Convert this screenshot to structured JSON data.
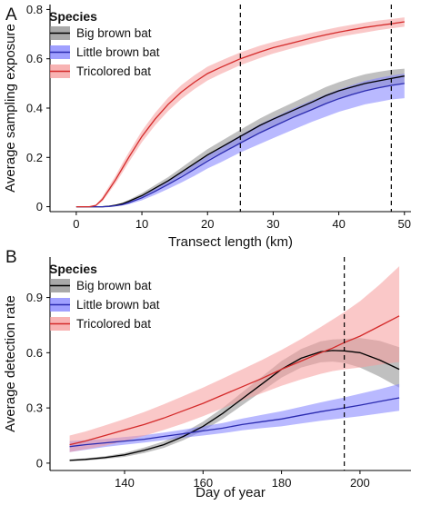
{
  "chart_data": [
    {
      "panel_label": "A",
      "type": "line",
      "xlabel": "Transect length (km)",
      "ylabel": "Average sampling exposure",
      "xlim": [
        -4,
        51
      ],
      "ylim": [
        -0.02,
        0.82
      ],
      "xticks": [
        0,
        10,
        20,
        30,
        40,
        50
      ],
      "xtick_labels": [
        "0",
        "10",
        "20",
        "30",
        "40",
        "50"
      ],
      "yticks": [
        0,
        0.2,
        0.4,
        0.6,
        0.8
      ],
      "ytick_labels": [
        "0",
        "0.2",
        "0.4",
        "0.6",
        "0.8"
      ],
      "vlines": [
        25,
        48
      ],
      "legend": {
        "title": "Species",
        "placement": "top-left"
      },
      "x": [
        0,
        2,
        3,
        4,
        5,
        6,
        7,
        8,
        10,
        12,
        14,
        16,
        18,
        20,
        22,
        25,
        28,
        30,
        33,
        36,
        38,
        40,
        42,
        44,
        46,
        48,
        50
      ],
      "series": [
        {
          "name": "Big brown bat",
          "color": "#000000",
          "band_color": "#8c8c8c",
          "values": [
            0,
            0,
            0,
            0,
            0.002,
            0.006,
            0.012,
            0.022,
            0.045,
            0.075,
            0.105,
            0.14,
            0.175,
            0.21,
            0.24,
            0.285,
            0.33,
            0.355,
            0.39,
            0.425,
            0.45,
            0.47,
            0.485,
            0.5,
            0.51,
            0.52,
            0.53
          ],
          "lower": [
            0,
            0,
            0,
            0,
            0.001,
            0.004,
            0.009,
            0.018,
            0.038,
            0.065,
            0.092,
            0.125,
            0.155,
            0.19,
            0.218,
            0.26,
            0.3,
            0.325,
            0.36,
            0.395,
            0.42,
            0.44,
            0.455,
            0.47,
            0.48,
            0.49,
            0.5
          ],
          "upper": [
            0,
            0,
            0,
            0,
            0.003,
            0.008,
            0.016,
            0.028,
            0.055,
            0.088,
            0.12,
            0.158,
            0.196,
            0.233,
            0.265,
            0.312,
            0.358,
            0.385,
            0.422,
            0.46,
            0.485,
            0.505,
            0.522,
            0.537,
            0.547,
            0.555,
            0.56
          ]
        },
        {
          "name": "Little brown bat",
          "color": "#2b2bb0",
          "band_color": "#8080ff",
          "values": [
            0,
            0,
            0,
            0,
            0.001,
            0.004,
            0.008,
            0.016,
            0.036,
            0.062,
            0.09,
            0.12,
            0.152,
            0.185,
            0.215,
            0.258,
            0.3,
            0.325,
            0.362,
            0.395,
            0.418,
            0.438,
            0.455,
            0.47,
            0.482,
            0.492,
            0.5
          ],
          "lower": [
            0,
            0,
            0,
            0,
            0,
            0.002,
            0.005,
            0.01,
            0.026,
            0.048,
            0.072,
            0.098,
            0.125,
            0.155,
            0.18,
            0.22,
            0.255,
            0.278,
            0.312,
            0.345,
            0.365,
            0.385,
            0.4,
            0.415,
            0.425,
            0.435,
            0.44
          ],
          "upper": [
            0,
            0,
            0,
            0,
            0.002,
            0.006,
            0.012,
            0.022,
            0.046,
            0.077,
            0.108,
            0.14,
            0.175,
            0.21,
            0.243,
            0.29,
            0.335,
            0.36,
            0.398,
            0.432,
            0.455,
            0.475,
            0.493,
            0.51,
            0.522,
            0.532,
            0.54
          ]
        },
        {
          "name": "Tricolored bat",
          "color": "#d42a2a",
          "band_color": "#f59a9a",
          "values": [
            0,
            0,
            0.005,
            0.03,
            0.07,
            0.11,
            0.155,
            0.2,
            0.285,
            0.355,
            0.415,
            0.465,
            0.505,
            0.54,
            0.565,
            0.6,
            0.628,
            0.645,
            0.665,
            0.685,
            0.697,
            0.708,
            0.718,
            0.727,
            0.735,
            0.742,
            0.75
          ],
          "lower": [
            0,
            0,
            0.003,
            0.022,
            0.058,
            0.095,
            0.137,
            0.18,
            0.262,
            0.33,
            0.388,
            0.437,
            0.477,
            0.512,
            0.538,
            0.574,
            0.603,
            0.621,
            0.643,
            0.663,
            0.676,
            0.688,
            0.698,
            0.707,
            0.716,
            0.723,
            0.73
          ],
          "upper": [
            0,
            0,
            0.008,
            0.04,
            0.084,
            0.126,
            0.174,
            0.22,
            0.308,
            0.38,
            0.442,
            0.493,
            0.533,
            0.568,
            0.592,
            0.626,
            0.653,
            0.668,
            0.688,
            0.706,
            0.718,
            0.729,
            0.738,
            0.747,
            0.755,
            0.761,
            0.768
          ]
        }
      ]
    },
    {
      "panel_label": "B",
      "type": "line",
      "xlabel": "Day of year",
      "ylabel": "Average detection rate",
      "xlim": [
        121,
        213
      ],
      "ylim": [
        -0.04,
        1.12
      ],
      "xticks": [
        140,
        160,
        180,
        200
      ],
      "xtick_labels": [
        "140",
        "160",
        "180",
        "200"
      ],
      "yticks": [
        0,
        0.3,
        0.6,
        0.9
      ],
      "ytick_labels": [
        "0",
        "0.3",
        "0.6",
        "0.9"
      ],
      "vlines": [
        196
      ],
      "legend": {
        "title": "Species",
        "placement": "top-left"
      },
      "x": [
        126,
        130,
        135,
        140,
        145,
        150,
        155,
        160,
        165,
        170,
        175,
        180,
        185,
        190,
        193,
        196,
        200,
        205,
        210
      ],
      "series": [
        {
          "name": "Big brown bat",
          "color": "#000000",
          "band_color": "#8c8c8c",
          "values": [
            0.015,
            0.02,
            0.03,
            0.045,
            0.07,
            0.1,
            0.145,
            0.2,
            0.27,
            0.35,
            0.43,
            0.51,
            0.57,
            0.605,
            0.612,
            0.61,
            0.6,
            0.56,
            0.51
          ],
          "lower": [
            0.01,
            0.014,
            0.022,
            0.034,
            0.055,
            0.083,
            0.125,
            0.175,
            0.24,
            0.315,
            0.39,
            0.465,
            0.52,
            0.548,
            0.552,
            0.545,
            0.52,
            0.47,
            0.41
          ],
          "upper": [
            0.02,
            0.026,
            0.038,
            0.056,
            0.085,
            0.118,
            0.165,
            0.225,
            0.3,
            0.385,
            0.47,
            0.555,
            0.62,
            0.662,
            0.672,
            0.675,
            0.68,
            0.665,
            0.63
          ]
        },
        {
          "name": "Little brown bat",
          "color": "#2b2bb0",
          "band_color": "#8080ff",
          "values": [
            0.09,
            0.1,
            0.11,
            0.12,
            0.13,
            0.145,
            0.16,
            0.175,
            0.19,
            0.21,
            0.225,
            0.24,
            0.26,
            0.28,
            0.29,
            0.3,
            0.315,
            0.335,
            0.355
          ],
          "lower": [
            0.06,
            0.072,
            0.088,
            0.1,
            0.112,
            0.125,
            0.138,
            0.15,
            0.163,
            0.178,
            0.19,
            0.2,
            0.215,
            0.23,
            0.238,
            0.245,
            0.255,
            0.27,
            0.285
          ],
          "upper": [
            0.12,
            0.125,
            0.132,
            0.142,
            0.152,
            0.166,
            0.182,
            0.2,
            0.218,
            0.242,
            0.262,
            0.282,
            0.306,
            0.33,
            0.344,
            0.357,
            0.377,
            0.402,
            0.43
          ]
        },
        {
          "name": "Tricolored bat",
          "color": "#d42a2a",
          "band_color": "#f59a9a",
          "values": [
            0.1,
            0.12,
            0.15,
            0.18,
            0.21,
            0.245,
            0.285,
            0.325,
            0.37,
            0.415,
            0.46,
            0.51,
            0.555,
            0.6,
            0.625,
            0.655,
            0.69,
            0.745,
            0.8
          ],
          "lower": [
            0.06,
            0.075,
            0.095,
            0.12,
            0.148,
            0.18,
            0.215,
            0.255,
            0.298,
            0.34,
            0.38,
            0.42,
            0.455,
            0.485,
            0.5,
            0.51,
            0.52,
            0.535,
            0.55
          ],
          "upper": [
            0.15,
            0.172,
            0.205,
            0.24,
            0.278,
            0.32,
            0.365,
            0.41,
            0.46,
            0.51,
            0.56,
            0.615,
            0.675,
            0.74,
            0.78,
            0.82,
            0.88,
            0.97,
            1.07
          ]
        }
      ]
    }
  ]
}
